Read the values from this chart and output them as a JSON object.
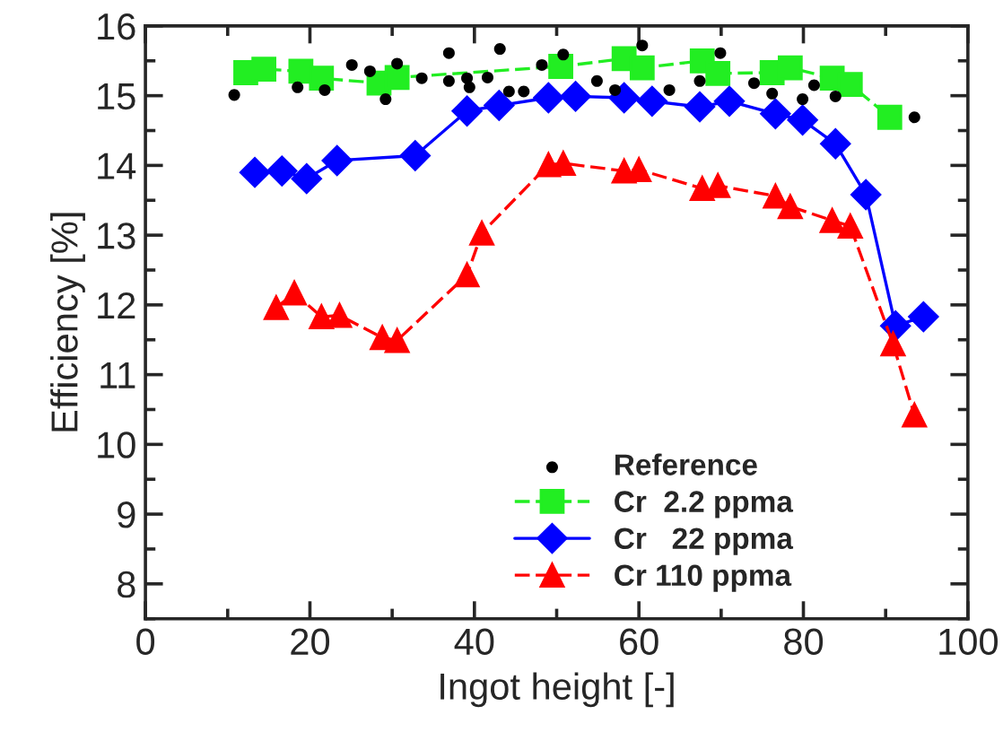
{
  "chart_data": {
    "type": "line",
    "xlabel": "Ingot height [-]",
    "ylabel": "Efficiency [%]",
    "xlim": [
      0,
      100
    ],
    "xticks": [
      0,
      20,
      40,
      60,
      80,
      100
    ],
    "ylim": [
      7.5,
      16
    ],
    "yticks": [
      8,
      9,
      10,
      11,
      12,
      13,
      14,
      15,
      16
    ],
    "grid": false,
    "legend": "bottom right",
    "series": [
      {
        "name": "Reference",
        "type": "scatter",
        "marker": "circle",
        "color": "#000000",
        "x": [
          10.8,
          18.5,
          21.8,
          25.1,
          27.3,
          29.2,
          30.6,
          33.6,
          36.9,
          36.9,
          39.1,
          39.4,
          41.6,
          43.1,
          44.2,
          46.0,
          48.2,
          50.8,
          54.9,
          57.1,
          60.4,
          63.7,
          67.4,
          69.9,
          74.0,
          76.2,
          79.9,
          81.3,
          83.9,
          93.5
        ],
        "values": [
          15.01,
          15.12,
          15.08,
          15.44,
          15.35,
          14.95,
          15.46,
          15.25,
          15.61,
          15.21,
          15.25,
          15.12,
          15.26,
          15.67,
          15.06,
          15.06,
          15.44,
          15.59,
          15.21,
          15.08,
          15.72,
          15.08,
          15.21,
          15.61,
          15.18,
          15.03,
          14.95,
          15.15,
          14.99,
          14.69
        ]
      },
      {
        "name": "Cr  2.2 ppma",
        "marker": "square",
        "line_style": "dashed",
        "color": "#22ee22",
        "x": [
          12.2,
          14.4,
          18.9,
          21.4,
          28.4,
          30.6,
          50.5,
          58.2,
          60.4,
          67.7,
          69.6,
          76.2,
          78.4,
          83.5,
          85.7,
          90.5
        ],
        "values": [
          15.33,
          15.38,
          15.35,
          15.25,
          15.18,
          15.26,
          15.42,
          15.53,
          15.4,
          15.5,
          15.32,
          15.33,
          15.4,
          15.25,
          15.16,
          14.69
        ]
      },
      {
        "name": "Cr   22 ppma",
        "marker": "diamond",
        "line_style": "solid",
        "color": "#0000ff",
        "x": [
          13.3,
          16.6,
          19.6,
          23.3,
          32.8,
          39.1,
          43.0,
          49.0,
          52.3,
          58.2,
          61.6,
          67.4,
          71.0,
          76.6,
          79.9,
          83.9,
          87.6,
          91.2,
          94.6
        ],
        "values": [
          13.9,
          13.92,
          13.81,
          14.07,
          14.14,
          14.78,
          14.86,
          14.97,
          14.99,
          14.97,
          14.92,
          14.84,
          14.92,
          14.74,
          14.65,
          14.31,
          13.58,
          11.7,
          11.83
        ]
      },
      {
        "name": "Cr 110 ppma",
        "marker": "triangle",
        "line_style": "dashed",
        "color": "#ff0000",
        "x": [
          15.9,
          18.1,
          21.4,
          23.6,
          28.8,
          30.6,
          39.1,
          40.9,
          49.0,
          50.8,
          58.2,
          60.0,
          67.7,
          69.6,
          76.6,
          78.4,
          83.5,
          85.7,
          90.9,
          93.5
        ],
        "values": [
          11.96,
          12.17,
          11.83,
          11.85,
          11.53,
          11.49,
          12.43,
          13.03,
          14.01,
          14.03,
          13.92,
          13.94,
          13.67,
          13.71,
          13.56,
          13.41,
          13.21,
          13.13,
          11.44,
          10.42
        ]
      }
    ]
  }
}
